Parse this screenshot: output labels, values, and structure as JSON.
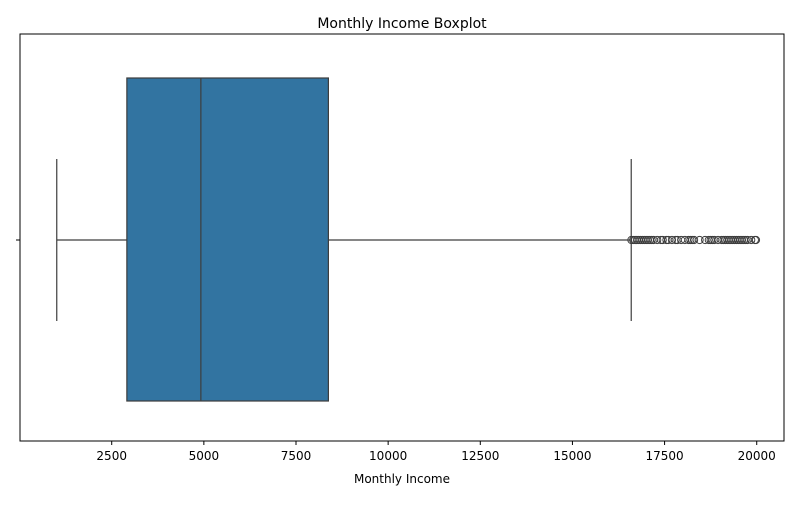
{
  "chart_data": {
    "type": "boxplot",
    "title": "Monthly Income Boxplot",
    "xlabel": "Monthly Income",
    "ylabel": "",
    "xlim": [
      11.8,
      20740
    ],
    "xticks": [
      2500,
      5000,
      7500,
      10000,
      12500,
      15000,
      17500,
      20000
    ],
    "xtick_labels": [
      "2500",
      "5000",
      "7500",
      "10000",
      "12500",
      "15000",
      "17500",
      "20000"
    ],
    "grid": false,
    "box": {
      "whisker_low": 1009,
      "q1": 2911,
      "median": 4919,
      "q3": 8379,
      "whisker_high": 16595
    },
    "outliers": [
      16600,
      16650,
      16700,
      16750,
      16800,
      16850,
      16900,
      16950,
      17000,
      17050,
      17100,
      17150,
      17200,
      17300,
      17400,
      17450,
      17550,
      17600,
      17700,
      17800,
      17850,
      17950,
      18050,
      18150,
      18200,
      18250,
      18300,
      18450,
      18600,
      18700,
      18750,
      18800,
      18850,
      18950,
      19050,
      19100,
      19150,
      19200,
      19250,
      19300,
      19350,
      19400,
      19450,
      19500,
      19550,
      19600,
      19650,
      19700,
      19750,
      19850,
      19950,
      19980
    ],
    "colors": {
      "box_fill": "#3274a1",
      "line": "#3d3d3d",
      "axis": "#000000"
    }
  }
}
